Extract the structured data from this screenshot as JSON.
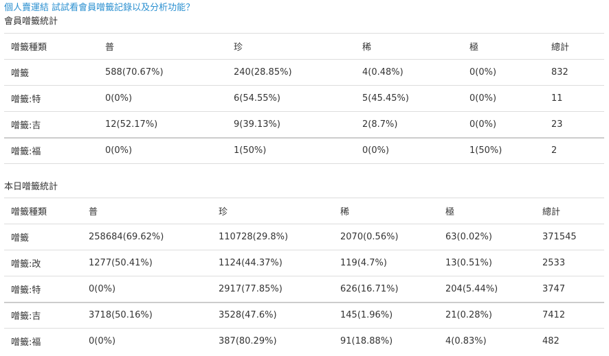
{
  "top_link": "個人賣運結 試試看會員噌籤記錄以及分析功能？",
  "member_section": {
    "title": "會員噌籤統計",
    "headers": [
      "噌籤種類",
      "普",
      "珍",
      "稀",
      "極",
      "總計"
    ],
    "rows": [
      [
        "噌籤",
        "588(70.67%)",
        "240(28.85%)",
        "4(0.48%)",
        "0(0%)",
        "832"
      ],
      [
        "噌籤:特",
        "0(0%)",
        "6(54.55%)",
        "5(45.45%)",
        "0(0%)",
        "11"
      ],
      [
        "噌籤:吉",
        "12(52.17%)",
        "9(39.13%)",
        "2(8.7%)",
        "0(0%)",
        "23"
      ],
      [
        "噌籤:福",
        "0(0%)",
        "1(50%)",
        "0(0%)",
        "1(50%)",
        "2"
      ]
    ]
  },
  "today_section": {
    "title": "本日噌籤統計",
    "headers": [
      "噌籤種類",
      "普",
      "珍",
      "稀",
      "極",
      "總計"
    ],
    "rows": [
      [
        "噌籤",
        "258684(69.62%)",
        "110728(29.8%)",
        "2070(0.56%)",
        "63(0.02%)",
        "371545"
      ],
      [
        "噌籤:改",
        "1277(50.41%)",
        "1124(44.37%)",
        "119(4.7%)",
        "13(0.51%)",
        "2533"
      ],
      [
        "噌籤:特",
        "0(0%)",
        "2917(77.85%)",
        "626(16.71%)",
        "204(5.44%)",
        "3747"
      ],
      [
        "噌籤:吉",
        "3718(50.16%)",
        "3528(47.6%)",
        "145(1.96%)",
        "21(0.28%)",
        "7412"
      ],
      [
        "噌籤:福",
        "0(0%)",
        "387(80.29%)",
        "91(18.88%)",
        "4(0.83%)",
        "482"
      ]
    ]
  }
}
